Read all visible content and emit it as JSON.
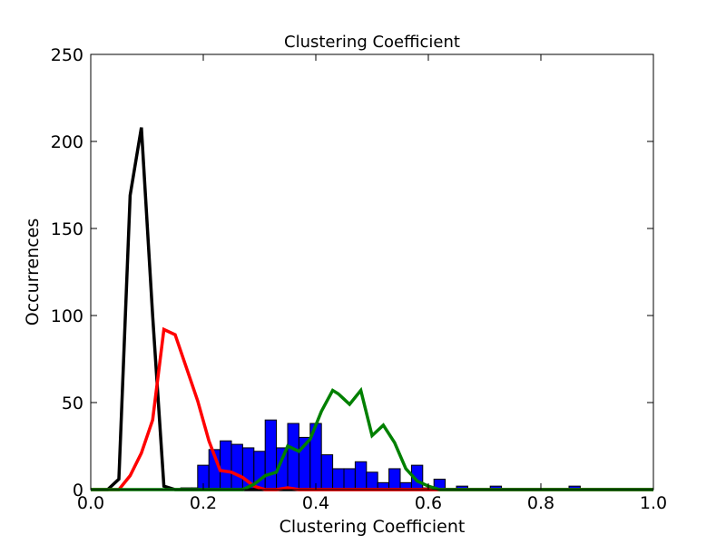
{
  "chart_data": {
    "type": "bar+line",
    "title": "Clustering Coefficient",
    "xlabel": "Clustering Coefficient",
    "ylabel": "Occurrences",
    "xlim": [
      0.0,
      1.0
    ],
    "ylim": [
      0,
      250
    ],
    "xticks": [
      "0.0",
      "0.2",
      "0.4",
      "0.6",
      "0.8",
      "1.0"
    ],
    "yticks": [
      "0",
      "50",
      "100",
      "150",
      "200",
      "250"
    ],
    "grid": false,
    "legend": "none",
    "histogram": {
      "color": "#0000ff",
      "bin_width": 0.02,
      "bins": [
        {
          "x": 0.16,
          "y": 1
        },
        {
          "x": 0.18,
          "y": 1
        },
        {
          "x": 0.19,
          "y": 14
        },
        {
          "x": 0.21,
          "y": 23
        },
        {
          "x": 0.23,
          "y": 28
        },
        {
          "x": 0.25,
          "y": 26
        },
        {
          "x": 0.27,
          "y": 24
        },
        {
          "x": 0.29,
          "y": 22
        },
        {
          "x": 0.31,
          "y": 40
        },
        {
          "x": 0.33,
          "y": 24
        },
        {
          "x": 0.35,
          "y": 38
        },
        {
          "x": 0.37,
          "y": 30
        },
        {
          "x": 0.39,
          "y": 38
        },
        {
          "x": 0.41,
          "y": 20
        },
        {
          "x": 0.43,
          "y": 12
        },
        {
          "x": 0.45,
          "y": 12
        },
        {
          "x": 0.47,
          "y": 16
        },
        {
          "x": 0.49,
          "y": 10
        },
        {
          "x": 0.51,
          "y": 4
        },
        {
          "x": 0.53,
          "y": 12
        },
        {
          "x": 0.55,
          "y": 4
        },
        {
          "x": 0.57,
          "y": 14
        },
        {
          "x": 0.59,
          "y": 1
        },
        {
          "x": 0.61,
          "y": 6
        },
        {
          "x": 0.65,
          "y": 2
        },
        {
          "x": 0.71,
          "y": 2
        },
        {
          "x": 0.85,
          "y": 2
        }
      ]
    },
    "series": [
      {
        "color": "#000000",
        "x": [
          0.0,
          0.03,
          0.05,
          0.07,
          0.09,
          0.11,
          0.13,
          0.15,
          0.2,
          0.5,
          1.0
        ],
        "y": [
          0,
          0,
          6,
          169,
          208,
          100,
          2,
          0,
          0,
          0,
          0
        ]
      },
      {
        "color": "#ff0000",
        "x": [
          0.0,
          0.05,
          0.07,
          0.09,
          0.11,
          0.13,
          0.15,
          0.17,
          0.19,
          0.21,
          0.23,
          0.25,
          0.27,
          0.29,
          0.31,
          0.33,
          0.35,
          0.37,
          0.4,
          0.5,
          1.0
        ],
        "y": [
          0,
          0,
          8,
          21,
          40,
          92,
          89,
          70,
          51,
          28,
          11,
          10,
          7,
          2,
          0,
          0,
          1,
          0,
          0,
          0,
          0
        ]
      },
      {
        "color": "#008000",
        "x": [
          0.0,
          0.27,
          0.29,
          0.31,
          0.33,
          0.35,
          0.37,
          0.39,
          0.41,
          0.43,
          0.44,
          0.46,
          0.48,
          0.5,
          0.52,
          0.54,
          0.56,
          0.58,
          0.6,
          0.62,
          0.65,
          1.0
        ],
        "y": [
          0,
          0,
          3,
          8,
          10,
          25,
          22,
          29,
          45,
          57,
          55,
          49,
          57,
          31,
          37,
          27,
          12,
          5,
          2,
          0,
          0,
          0
        ]
      }
    ]
  }
}
